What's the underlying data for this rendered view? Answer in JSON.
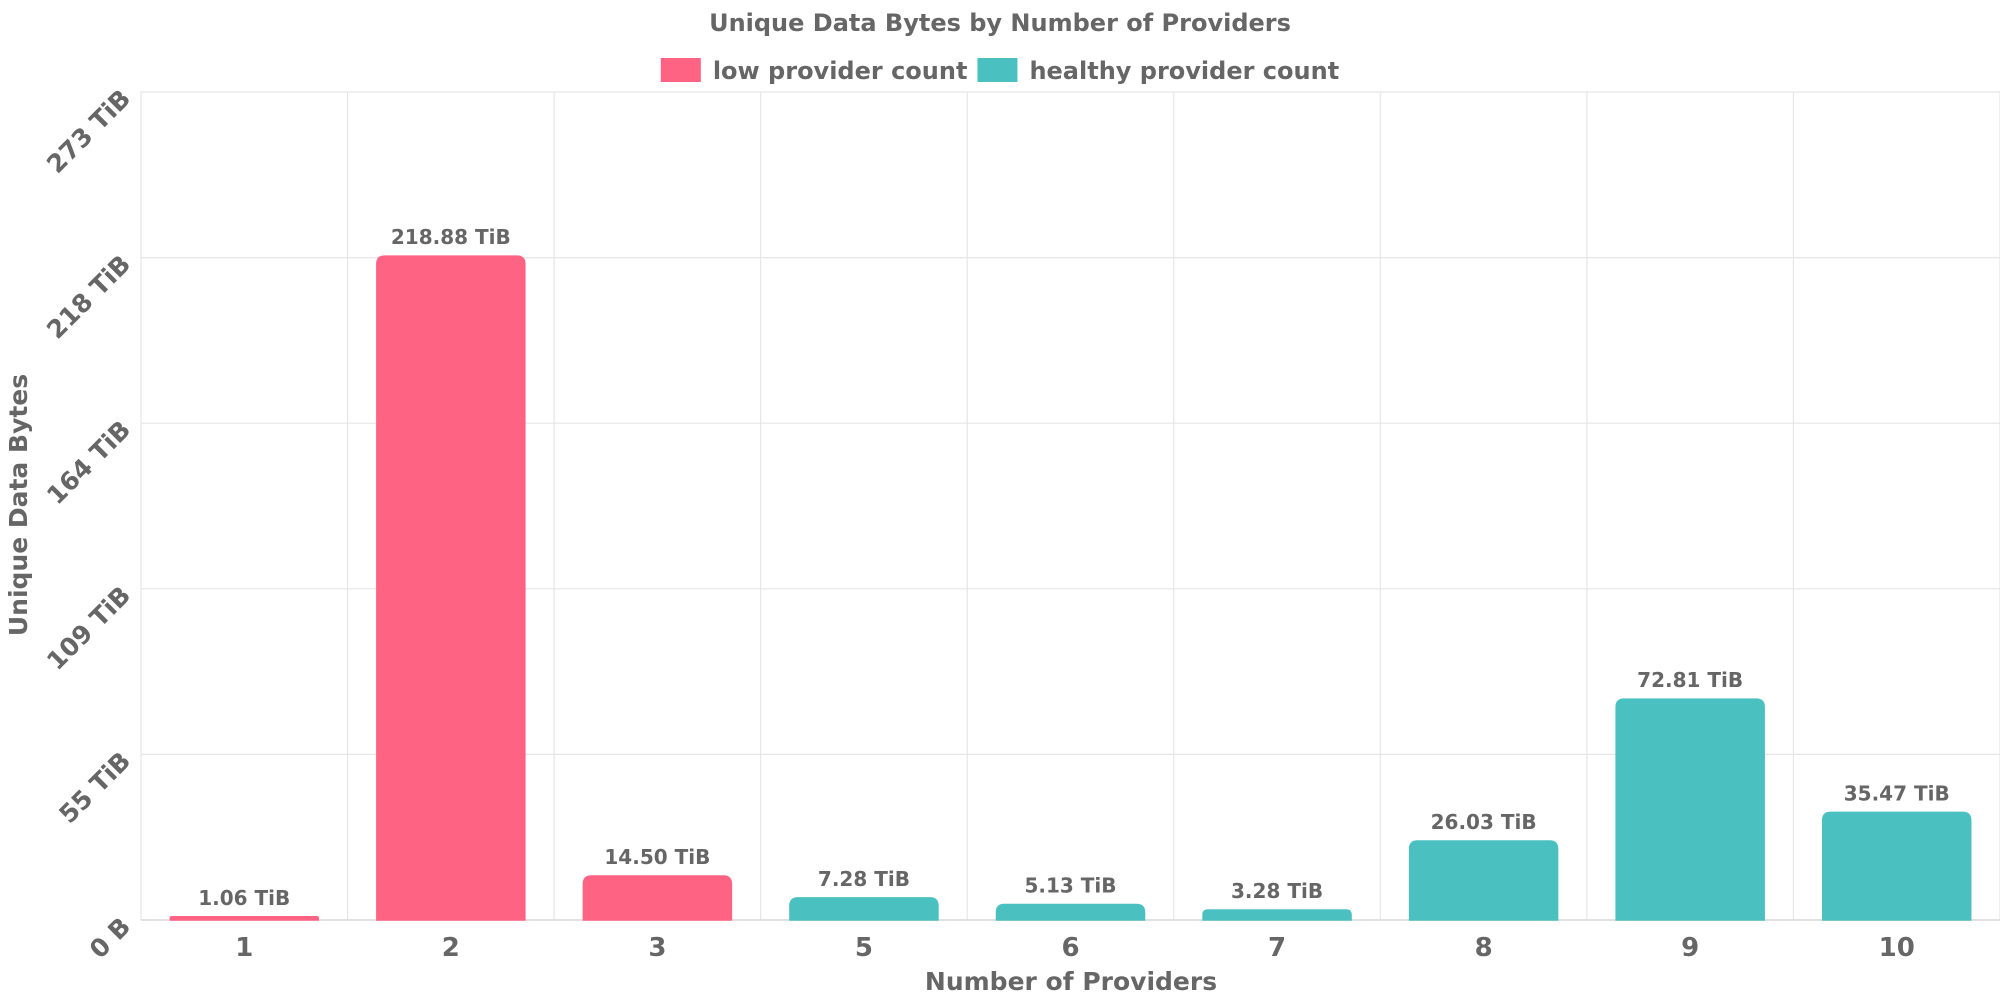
{
  "chart_data": {
    "type": "bar",
    "title": "Unique Data Bytes by Number of Providers",
    "xlabel": "Number of Providers",
    "ylabel": "Unique Data Bytes",
    "categories": [
      "1",
      "2",
      "3",
      "5",
      "6",
      "7",
      "8",
      "9",
      "10"
    ],
    "values": [
      1.06,
      218.88,
      14.5,
      7.28,
      5.13,
      3.28,
      26.03,
      72.81,
      35.47
    ],
    "value_labels": [
      "1.06 TiB",
      "218.88 TiB",
      "14.50 TiB",
      "7.28 TiB",
      "5.13 TiB",
      "3.28 TiB",
      "26.03 TiB",
      "72.81 TiB",
      "35.47 TiB"
    ],
    "series_index": [
      0,
      0,
      0,
      1,
      1,
      1,
      1,
      1,
      1
    ],
    "series": [
      {
        "name": "low provider count",
        "color": "#ff6384"
      },
      {
        "name": "healthy provider count",
        "color": "#4bc0c0"
      }
    ],
    "unit": "TiB",
    "ylim": [
      0,
      273
    ],
    "y_ticks": [
      0,
      54.6,
      109.2,
      163.8,
      218.4,
      273
    ],
    "y_tick_labels": [
      "0 B",
      "55 TiB",
      "109 TiB",
      "164 TiB",
      "218 TiB",
      "273 TiB"
    ],
    "legend_position": "top",
    "grid": true
  }
}
